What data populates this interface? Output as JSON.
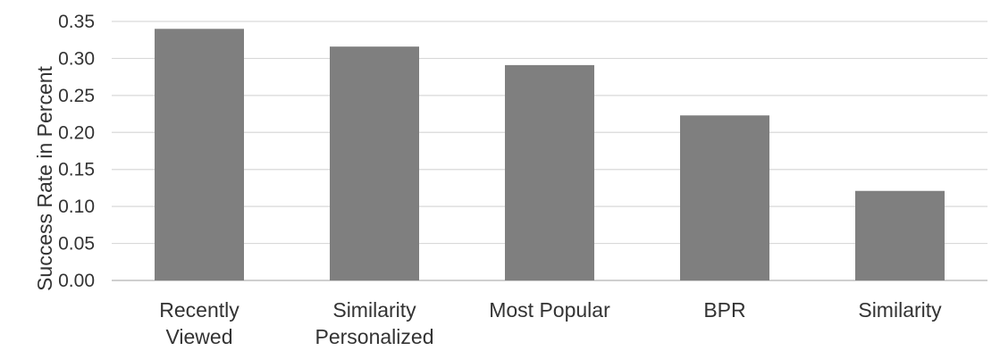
{
  "chart_data": {
    "type": "bar",
    "categories": [
      [
        "Recently",
        "Viewed"
      ],
      [
        "Similarity",
        "Personalized"
      ],
      [
        "Most Popular"
      ],
      [
        "BPR"
      ],
      [
        "Similarity"
      ]
    ],
    "values": [
      0.34,
      0.316,
      0.291,
      0.223,
      0.121
    ],
    "ylabel": "Success Rate in Percent",
    "xlabel": "",
    "ylim": [
      0,
      0.35
    ],
    "yticks": [
      "0.00",
      "0.05",
      "0.10",
      "0.15",
      "0.20",
      "0.25",
      "0.30",
      "0.35"
    ],
    "grid": true,
    "bar_color": "#7f7f7f",
    "legend": "none"
  }
}
